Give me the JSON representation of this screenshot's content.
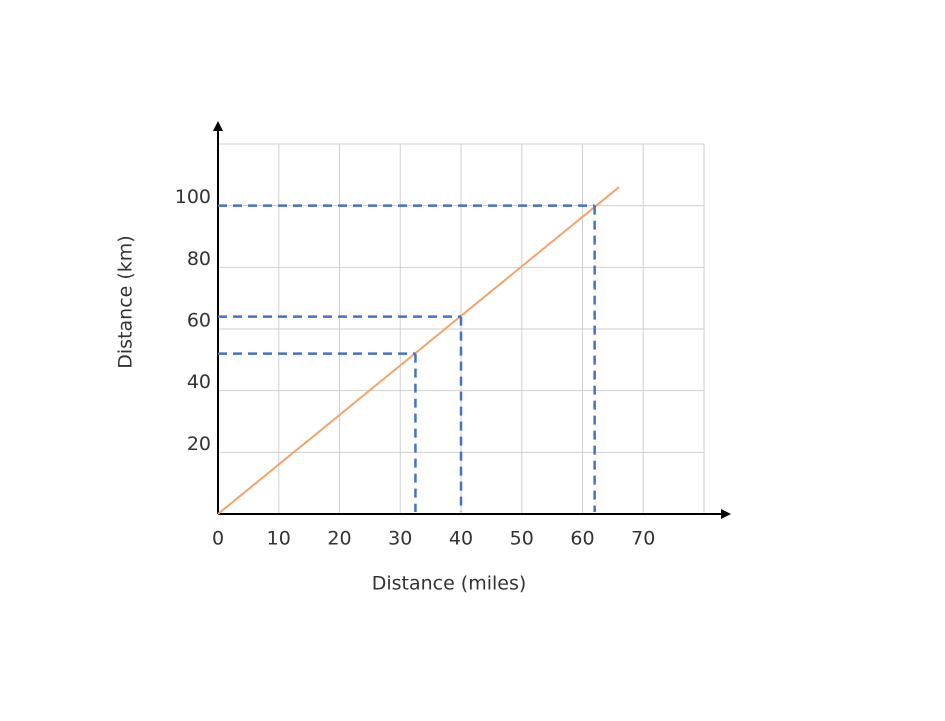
{
  "chart_data": {
    "type": "line",
    "x_label": "Distance (miles)",
    "y_label": "Distance (km)",
    "x": [
      0,
      66
    ],
    "series": [
      {
        "color": "#f4a46a",
        "values": [
          0,
          106
        ]
      }
    ],
    "guides": [
      {
        "x": 32.5,
        "y": 52
      },
      {
        "x": 40,
        "y": 64
      },
      {
        "x": 62,
        "y": 100
      }
    ],
    "guide_color": "#4472c4",
    "xlim": [
      0,
      80
    ],
    "ylim": [
      0,
      120
    ],
    "xticks": [
      0,
      10,
      20,
      30,
      40,
      50,
      60,
      70
    ],
    "yticks": [
      20,
      40,
      60,
      80,
      100
    ],
    "grid": true
  }
}
